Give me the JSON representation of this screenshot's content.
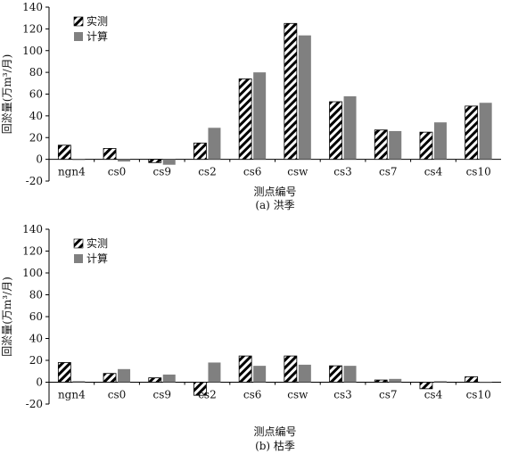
{
  "chart_data": [
    {
      "type": "bar",
      "caption": "(a) 洪季",
      "xlabel": "测点编号",
      "ylabel": "回淤量(万m³/月)",
      "ylim": [
        -20,
        140
      ],
      "yticks": [
        -20,
        0,
        20,
        40,
        60,
        80,
        100,
        120,
        140
      ],
      "legend_position": "top-left",
      "categories": [
        "ngn4",
        "cs0",
        "cs9",
        "cs2",
        "cs6",
        "csw",
        "cs3",
        "cs7",
        "cs4",
        "cs10"
      ],
      "series": [
        {
          "name": "实测",
          "values": [
            13,
            10,
            -3,
            15,
            74,
            125,
            53,
            27,
            25,
            49
          ]
        },
        {
          "name": "计算",
          "values": [
            0,
            -2,
            -5,
            29,
            80,
            114,
            58,
            26,
            34,
            52
          ]
        }
      ]
    },
    {
      "type": "bar",
      "caption": "(b) 枯季",
      "xlabel": "测点编号",
      "ylabel": "回淤量(万m³/月)",
      "ylim": [
        -20,
        140
      ],
      "yticks": [
        -20,
        0,
        20,
        40,
        60,
        80,
        100,
        120,
        140
      ],
      "legend_position": "top-left",
      "categories": [
        "ngn4",
        "cs0",
        "cs9",
        "cs2",
        "cs6",
        "csw",
        "cs3",
        "cs7",
        "cs4",
        "cs10"
      ],
      "series": [
        {
          "name": "实测",
          "values": [
            18,
            8,
            4,
            -12,
            24,
            24,
            15,
            2,
            -6,
            5
          ]
        },
        {
          "name": "计算",
          "values": [
            1,
            12,
            7,
            18,
            15,
            16,
            15,
            3,
            1,
            0
          ]
        }
      ]
    }
  ],
  "colors": {
    "measured_a": "#000000",
    "measured_b": "#ffffff",
    "calculated": "#808080",
    "axis": "#000000"
  }
}
